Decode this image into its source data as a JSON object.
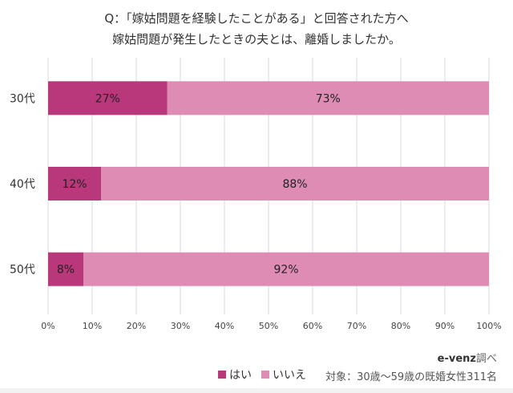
{
  "chart_data": {
    "type": "bar",
    "orientation": "horizontal",
    "stacked": true,
    "title_lines": [
      "Q：「嫁姑問題を経験したことがある」と回答された方へ",
      "嫁姑問題が発生したときの夫とは、離婚しましたか。"
    ],
    "categories": [
      "30代",
      "40代",
      "50代"
    ],
    "series": [
      {
        "name": "はい",
        "values": [
          27,
          12,
          8
        ],
        "color": "#b9377b"
      },
      {
        "name": "いいえ",
        "values": [
          73,
          88,
          92
        ],
        "color": "#de8cb4"
      }
    ],
    "data_labels": [
      [
        "27%",
        "12%",
        "8%"
      ],
      [
        "73%",
        "88%",
        "92%"
      ]
    ],
    "xlim": [
      0,
      100
    ],
    "xticks": [
      "0%",
      "10%",
      "20%",
      "30%",
      "40%",
      "50%",
      "60%",
      "70%",
      "80%",
      "90%",
      "100%"
    ],
    "grid": "vertical",
    "legend_placement": "bottom"
  },
  "footer": {
    "source_brand": "e-venz",
    "source_suffix": "調べ",
    "target": "対象：30歳〜59歳の既婚女性311名"
  }
}
